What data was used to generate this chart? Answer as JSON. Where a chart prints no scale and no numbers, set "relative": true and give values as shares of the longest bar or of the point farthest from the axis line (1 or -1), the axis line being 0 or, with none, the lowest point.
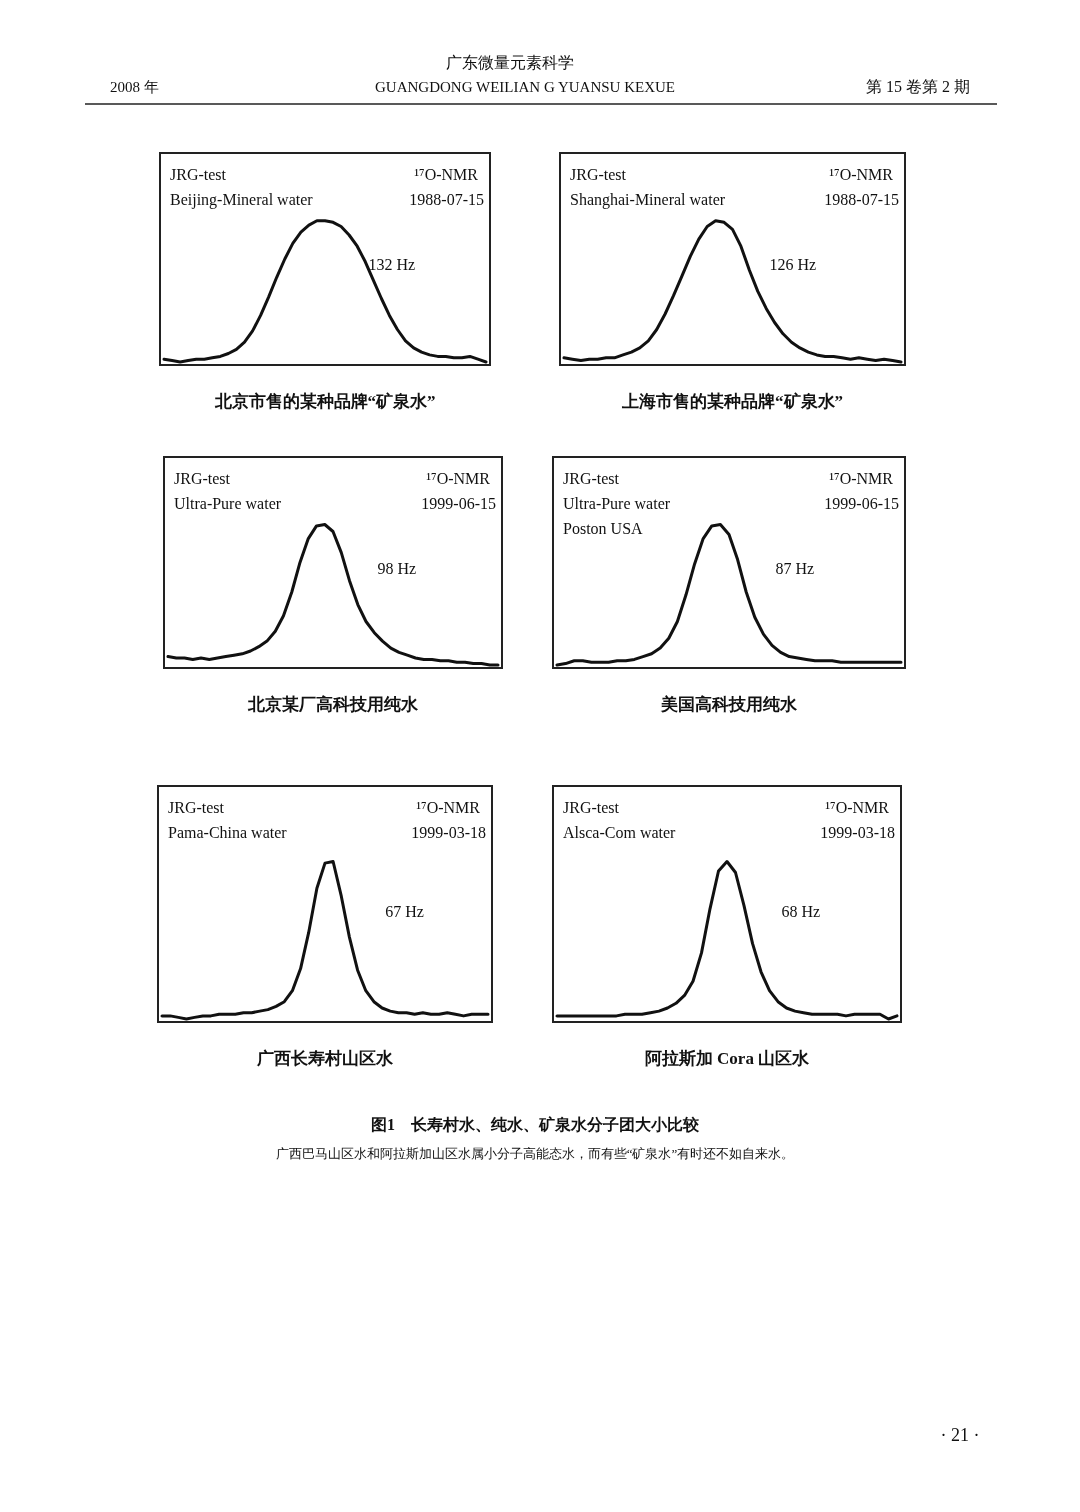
{
  "chart_data": [
    {
      "type": "line",
      "relative": true,
      "title": "北京市售的某种品牌“矿泉水”",
      "categories": [
        null,
        null,
        null,
        null,
        null,
        null,
        null,
        null,
        null,
        null,
        null,
        null,
        null,
        null,
        null,
        null,
        null,
        null,
        null,
        null,
        null,
        null,
        null,
        null,
        null,
        null,
        null,
        null,
        null,
        null,
        null,
        null,
        null,
        null,
        null,
        null,
        null,
        null,
        null,
        null,
        null
      ],
      "series": [
        {
          "color": "#111111",
          "values": [
            0.02,
            0.01,
            0.0,
            0.01,
            0.02,
            0.02,
            0.03,
            0.04,
            0.06,
            0.09,
            0.14,
            0.22,
            0.33,
            0.46,
            0.6,
            0.73,
            0.84,
            0.92,
            0.97,
            1.0,
            1.0,
            0.99,
            0.96,
            0.9,
            0.82,
            0.71,
            0.58,
            0.45,
            0.33,
            0.23,
            0.15,
            0.1,
            0.07,
            0.05,
            0.04,
            0.04,
            0.03,
            0.03,
            0.04,
            0.02,
            0.0
          ]
        }
      ],
      "annotations": [
        "JRG-test",
        "Beijing-Mineral water",
        "¹⁷O-NMR",
        "1988-07-15",
        "132 Hz"
      ]
    },
    {
      "type": "line",
      "relative": true,
      "title": "上海市售的某种品牌“矿泉水”",
      "categories": [
        null,
        null,
        null,
        null,
        null,
        null,
        null,
        null,
        null,
        null,
        null,
        null,
        null,
        null,
        null,
        null,
        null,
        null,
        null,
        null,
        null,
        null,
        null,
        null,
        null,
        null,
        null,
        null,
        null,
        null,
        null,
        null,
        null,
        null,
        null,
        null,
        null,
        null,
        null,
        null,
        null
      ],
      "series": [
        {
          "color": "#111111",
          "values": [
            0.03,
            0.02,
            0.01,
            0.02,
            0.02,
            0.03,
            0.03,
            0.05,
            0.07,
            0.1,
            0.15,
            0.23,
            0.34,
            0.47,
            0.61,
            0.75,
            0.87,
            0.96,
            1.0,
            0.99,
            0.94,
            0.82,
            0.65,
            0.5,
            0.38,
            0.28,
            0.2,
            0.14,
            0.1,
            0.07,
            0.05,
            0.04,
            0.04,
            0.03,
            0.02,
            0.03,
            0.02,
            0.01,
            0.02,
            0.01,
            0.0
          ]
        }
      ],
      "annotations": [
        "JRG-test",
        "Shanghai-Mineral water",
        "¹⁷O-NMR",
        "1988-07-15",
        "126 Hz"
      ]
    },
    {
      "type": "line",
      "relative": true,
      "title": "北京某厂高科技用纯水",
      "categories": [
        null,
        null,
        null,
        null,
        null,
        null,
        null,
        null,
        null,
        null,
        null,
        null,
        null,
        null,
        null,
        null,
        null,
        null,
        null,
        null,
        null,
        null,
        null,
        null,
        null,
        null,
        null,
        null,
        null,
        null,
        null,
        null,
        null,
        null,
        null,
        null,
        null,
        null,
        null,
        null,
        null
      ],
      "series": [
        {
          "color": "#111111",
          "values": [
            0.06,
            0.05,
            0.05,
            0.04,
            0.05,
            0.04,
            0.05,
            0.06,
            0.07,
            0.08,
            0.1,
            0.13,
            0.17,
            0.24,
            0.35,
            0.52,
            0.73,
            0.9,
            0.99,
            1.0,
            0.95,
            0.8,
            0.6,
            0.43,
            0.31,
            0.23,
            0.17,
            0.12,
            0.09,
            0.07,
            0.05,
            0.04,
            0.04,
            0.03,
            0.03,
            0.02,
            0.02,
            0.01,
            0.01,
            0.0,
            0.0
          ]
        }
      ],
      "annotations": [
        "JRG-test",
        "Ultra-Pure water",
        "¹⁷O-NMR",
        "1999-06-15",
        "98 Hz"
      ]
    },
    {
      "type": "line",
      "relative": true,
      "title": "美国高科技用纯水",
      "categories": [
        null,
        null,
        null,
        null,
        null,
        null,
        null,
        null,
        null,
        null,
        null,
        null,
        null,
        null,
        null,
        null,
        null,
        null,
        null,
        null,
        null,
        null,
        null,
        null,
        null,
        null,
        null,
        null,
        null,
        null,
        null,
        null,
        null,
        null,
        null,
        null,
        null,
        null,
        null,
        null,
        null
      ],
      "series": [
        {
          "color": "#111111",
          "values": [
            0.0,
            0.01,
            0.03,
            0.03,
            0.02,
            0.02,
            0.02,
            0.03,
            0.03,
            0.04,
            0.06,
            0.08,
            0.12,
            0.19,
            0.31,
            0.5,
            0.72,
            0.9,
            0.99,
            1.0,
            0.93,
            0.75,
            0.52,
            0.34,
            0.22,
            0.14,
            0.09,
            0.06,
            0.05,
            0.04,
            0.03,
            0.03,
            0.03,
            0.02,
            0.02,
            0.02,
            0.02,
            0.02,
            0.02,
            0.02,
            0.02
          ]
        }
      ],
      "annotations": [
        "JRG-test",
        "Ultra-Pure water",
        "Poston USA",
        "¹⁷O-NMR",
        "1999-06-15",
        "87 Hz"
      ]
    },
    {
      "type": "line",
      "relative": true,
      "title": "广西长寿村山区水",
      "categories": [
        null,
        null,
        null,
        null,
        null,
        null,
        null,
        null,
        null,
        null,
        null,
        null,
        null,
        null,
        null,
        null,
        null,
        null,
        null,
        null,
        null,
        null,
        null,
        null,
        null,
        null,
        null,
        null,
        null,
        null,
        null,
        null,
        null,
        null,
        null,
        null,
        null,
        null,
        null,
        null,
        null
      ],
      "series": [
        {
          "color": "#111111",
          "values": [
            0.02,
            0.02,
            0.01,
            0.0,
            0.01,
            0.02,
            0.02,
            0.03,
            0.03,
            0.03,
            0.04,
            0.04,
            0.05,
            0.06,
            0.08,
            0.11,
            0.18,
            0.32,
            0.55,
            0.83,
            0.99,
            1.0,
            0.78,
            0.52,
            0.31,
            0.18,
            0.11,
            0.07,
            0.05,
            0.04,
            0.04,
            0.03,
            0.04,
            0.03,
            0.03,
            0.04,
            0.03,
            0.02,
            0.03,
            0.03,
            0.03
          ]
        }
      ],
      "annotations": [
        "JRG-test",
        "Pama-China water",
        "¹⁷O-NMR",
        "1999-03-18",
        "67 Hz"
      ]
    },
    {
      "type": "line",
      "relative": true,
      "title": "阿拉斯加 Cora 山区水",
      "categories": [
        null,
        null,
        null,
        null,
        null,
        null,
        null,
        null,
        null,
        null,
        null,
        null,
        null,
        null,
        null,
        null,
        null,
        null,
        null,
        null,
        null,
        null,
        null,
        null,
        null,
        null,
        null,
        null,
        null,
        null,
        null,
        null,
        null,
        null,
        null,
        null,
        null,
        null,
        null,
        null,
        null
      ],
      "series": [
        {
          "color": "#111111",
          "values": [
            0.02,
            0.02,
            0.02,
            0.02,
            0.02,
            0.02,
            0.02,
            0.02,
            0.03,
            0.03,
            0.03,
            0.04,
            0.05,
            0.07,
            0.1,
            0.15,
            0.24,
            0.42,
            0.7,
            0.94,
            1.0,
            0.93,
            0.72,
            0.48,
            0.3,
            0.18,
            0.11,
            0.07,
            0.05,
            0.04,
            0.03,
            0.03,
            0.03,
            0.03,
            0.02,
            0.03,
            0.03,
            0.03,
            0.03,
            0.0,
            0.02
          ]
        }
      ],
      "annotations": [
        "JRG-test",
        "Alsca-Com water",
        "¹⁷O-NMR",
        "1999-03-18",
        "68 Hz"
      ]
    },
    {
      "type": "other",
      "annotations": [
        "广东微量元素科学",
        "2008 年",
        "GUANGDONG WEILIAN G YUANSU KEXUE",
        "第 15 卷第 2 期",
        "图1　长寿村水、纯水、矿泉水分子团大小比较",
        "广西巴马山区水和阿拉斯加山区水属小分子高能态水，而有些“矿泉水”有时还不如自来水。",
        "· 21 ·"
      ]
    }
  ]
}
